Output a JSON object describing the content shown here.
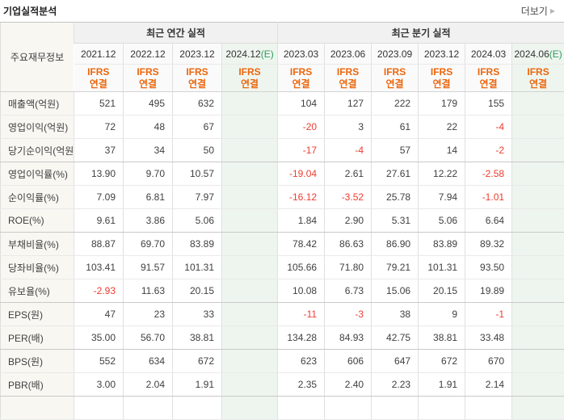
{
  "header": {
    "title": "기업실적분석",
    "more_label": "더보기"
  },
  "table": {
    "corner_header": "주요재무정보",
    "groups": [
      {
        "label": "최근 연간 실적",
        "span": 4
      },
      {
        "label": "최근 분기 실적",
        "span": 6
      }
    ],
    "ifrs_label": {
      "line1": "IFRS",
      "line2": "연결"
    },
    "estimate_suffix": "(E)",
    "columns": [
      {
        "period": "2021.12",
        "estimate": false
      },
      {
        "period": "2022.12",
        "estimate": false
      },
      {
        "period": "2023.12",
        "estimate": false
      },
      {
        "period": "2024.12",
        "estimate": true
      },
      {
        "period": "2023.03",
        "estimate": false
      },
      {
        "period": "2023.06",
        "estimate": false
      },
      {
        "period": "2023.09",
        "estimate": false
      },
      {
        "period": "2023.12",
        "estimate": false
      },
      {
        "period": "2024.03",
        "estimate": false
      },
      {
        "period": "2024.06",
        "estimate": true
      }
    ],
    "rows": [
      {
        "label": "매출액(억원)",
        "group_end": false,
        "values": [
          "521",
          "495",
          "632",
          "",
          "104",
          "127",
          "222",
          "179",
          "155",
          ""
        ]
      },
      {
        "label": "영업이익(억원)",
        "group_end": false,
        "values": [
          "72",
          "48",
          "67",
          "",
          "-20",
          "3",
          "61",
          "22",
          "-4",
          ""
        ]
      },
      {
        "label": "당기순이익(억원)",
        "group_end": true,
        "values": [
          "37",
          "34",
          "50",
          "",
          "-17",
          "-4",
          "57",
          "14",
          "-2",
          ""
        ]
      },
      {
        "label": "영업이익률(%)",
        "group_end": false,
        "values": [
          "13.90",
          "9.70",
          "10.57",
          "",
          "-19.04",
          "2.61",
          "27.61",
          "12.22",
          "-2.58",
          ""
        ]
      },
      {
        "label": "순이익률(%)",
        "group_end": false,
        "values": [
          "7.09",
          "6.81",
          "7.97",
          "",
          "-16.12",
          "-3.52",
          "25.78",
          "7.94",
          "-1.01",
          ""
        ]
      },
      {
        "label": "ROE(%)",
        "group_end": true,
        "values": [
          "9.61",
          "3.86",
          "5.06",
          "",
          "1.84",
          "2.90",
          "5.31",
          "5.06",
          "6.64",
          ""
        ]
      },
      {
        "label": "부채비율(%)",
        "group_end": false,
        "values": [
          "88.87",
          "69.70",
          "83.89",
          "",
          "78.42",
          "86.63",
          "86.90",
          "83.89",
          "89.32",
          ""
        ]
      },
      {
        "label": "당좌비율(%)",
        "group_end": false,
        "values": [
          "103.41",
          "91.57",
          "101.31",
          "",
          "105.66",
          "71.80",
          "79.21",
          "101.31",
          "93.50",
          ""
        ]
      },
      {
        "label": "유보율(%)",
        "group_end": true,
        "values": [
          "-2.93",
          "11.63",
          "20.15",
          "",
          "10.08",
          "6.73",
          "15.06",
          "20.15",
          "19.89",
          ""
        ]
      },
      {
        "label": "EPS(원)",
        "group_end": false,
        "values": [
          "47",
          "23",
          "33",
          "",
          "-11",
          "-3",
          "38",
          "9",
          "-1",
          ""
        ]
      },
      {
        "label": "PER(배)",
        "group_end": true,
        "values": [
          "35.00",
          "56.70",
          "38.81",
          "",
          "134.28",
          "84.93",
          "42.75",
          "38.81",
          "33.48",
          ""
        ]
      },
      {
        "label": "BPS(원)",
        "group_end": false,
        "values": [
          "552",
          "634",
          "672",
          "",
          "623",
          "606",
          "647",
          "672",
          "670",
          ""
        ]
      },
      {
        "label": "PBR(배)",
        "group_end": true,
        "values": [
          "3.00",
          "2.04",
          "1.91",
          "",
          "2.35",
          "2.40",
          "2.23",
          "1.91",
          "2.14",
          ""
        ]
      },
      {
        "label": "",
        "group_end": false,
        "values": [
          "",
          "",
          "",
          "",
          "",
          "",
          "",
          "",
          "",
          ""
        ]
      }
    ],
    "colors": {
      "ifrs_orange": "#ec660c",
      "estimate_green": "#2d9e5f",
      "negative_red": "#ee3c30",
      "estimate_column_bg": "#eef5ee",
      "label_column_bg": "#f8f7f2"
    }
  }
}
